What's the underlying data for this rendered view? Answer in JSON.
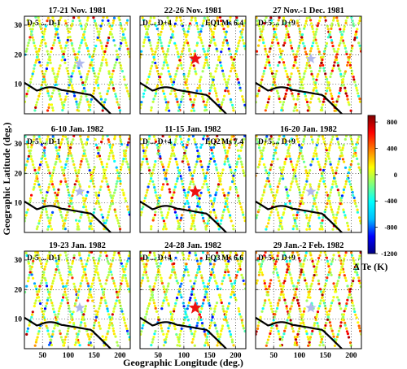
{
  "x_axis_label": "Geographic Longitude (deg.)",
  "y_axis_label": "Geographic Latitude (deg.)",
  "colorbar": {
    "label": "Δ Te (K)",
    "range": [
      -1200,
      900
    ],
    "ticks": [
      "800",
      "400",
      "0",
      "-400",
      "-800",
      "-1200"
    ],
    "tick_values": [
      800,
      400,
      0,
      -400,
      -800,
      -1200
    ],
    "colormap": [
      "#000080",
      "#0000ff",
      "#00bfff",
      "#00ffff",
      "#7fff7f",
      "#ffff00",
      "#ff7f00",
      "#ff0000",
      "#800000"
    ]
  },
  "colors": {
    "epicenter_star": "#ee1111",
    "reference_star": "#b0b8ee",
    "boundary_line": "#000000"
  },
  "chart_data": [
    {
      "type": "scatter",
      "title": "17-21 Nov. 1981",
      "window": "D-5 ... D-1",
      "event": "",
      "magnitude": "",
      "epicenter": null,
      "star": [
        122,
        17
      ],
      "dominant_anomaly": "mixed",
      "xlim": [
        15,
        220
      ],
      "ylim": [
        0,
        33
      ],
      "xticks": [
        "50",
        "100",
        "150",
        "200"
      ],
      "yticks": [
        "10",
        "20",
        "30"
      ]
    },
    {
      "type": "scatter",
      "title": "22-26 Nov. 1981",
      "window": "D ... D+4",
      "event": "EQ1",
      "magnitude": "Ms 6.4",
      "epicenter": [
        122,
        18.6
      ],
      "star": null,
      "dominant_anomaly": "mixed",
      "xlim": [
        15,
        220
      ],
      "ylim": [
        0,
        33
      ],
      "xticks": [
        "50",
        "100",
        "150",
        "200"
      ],
      "yticks": []
    },
    {
      "type": "scatter",
      "title": "27 Nov.-1 Dec. 1981",
      "window": "D+5 ... D+9",
      "event": "",
      "magnitude": "",
      "epicenter": null,
      "star": [
        122,
        18.6
      ],
      "dominant_anomaly": "positive",
      "xlim": [
        15,
        220
      ],
      "ylim": [
        0,
        33
      ],
      "xticks": [
        "50",
        "100",
        "150",
        "200"
      ],
      "yticks": []
    },
    {
      "type": "scatter",
      "title": "6-10 Jan. 1982",
      "window": "D-5 ... D-1",
      "event": "",
      "magnitude": "",
      "epicenter": null,
      "star": [
        122,
        13.8
      ],
      "dominant_anomaly": "mixed",
      "xlim": [
        15,
        220
      ],
      "ylim": [
        0,
        33
      ],
      "xticks": [
        "50",
        "100",
        "150",
        "200"
      ],
      "yticks": [
        "10",
        "20",
        "30"
      ]
    },
    {
      "type": "scatter",
      "title": "11-15 Jan. 1982",
      "window": "D ... D+4",
      "event": "EQ2",
      "magnitude": "Ms 7.4",
      "epicenter": [
        122,
        13.8
      ],
      "star": null,
      "dominant_anomaly": "negative",
      "xlim": [
        15,
        220
      ],
      "ylim": [
        0,
        33
      ],
      "xticks": [
        "50",
        "100",
        "150",
        "200"
      ],
      "yticks": []
    },
    {
      "type": "scatter",
      "title": "16-20 Jan. 1982",
      "window": "D+5 ... D+9",
      "event": "",
      "magnitude": "",
      "epicenter": null,
      "star": [
        122,
        13.8
      ],
      "dominant_anomaly": "mixed",
      "xlim": [
        15,
        220
      ],
      "ylim": [
        0,
        33
      ],
      "xticks": [
        "50",
        "100",
        "150",
        "200"
      ],
      "yticks": []
    },
    {
      "type": "scatter",
      "title": "19-23 Jan. 1982",
      "window": "D-5 ... D-1",
      "event": "",
      "magnitude": "",
      "epicenter": null,
      "star": [
        122,
        13.8
      ],
      "dominant_anomaly": "mixed",
      "xlim": [
        15,
        220
      ],
      "ylim": [
        0,
        33
      ],
      "xticks": [
        "50",
        "100",
        "150",
        "200"
      ],
      "yticks": [
        "10",
        "20",
        "30"
      ]
    },
    {
      "type": "scatter",
      "title": "24-28 Jan. 1982",
      "window": "D ... D+4",
      "event": "EQ3",
      "magnitude": "Ms 6.6",
      "epicenter": [
        122,
        13.8
      ],
      "star": null,
      "dominant_anomaly": "negative",
      "xlim": [
        15,
        220
      ],
      "ylim": [
        0,
        33
      ],
      "xticks": [
        "50",
        "100",
        "150",
        "200"
      ],
      "yticks": []
    },
    {
      "type": "scatter",
      "title": "29 Jan.-2 Feb. 1982",
      "window": "D+5 ... D+9",
      "event": "",
      "magnitude": "",
      "epicenter": null,
      "star": [
        122,
        13.8
      ],
      "dominant_anomaly": "positive",
      "xlim": [
        15,
        220
      ],
      "ylim": [
        0,
        33
      ],
      "xticks": [
        "50",
        "100",
        "150",
        "200"
      ],
      "yticks": []
    }
  ]
}
